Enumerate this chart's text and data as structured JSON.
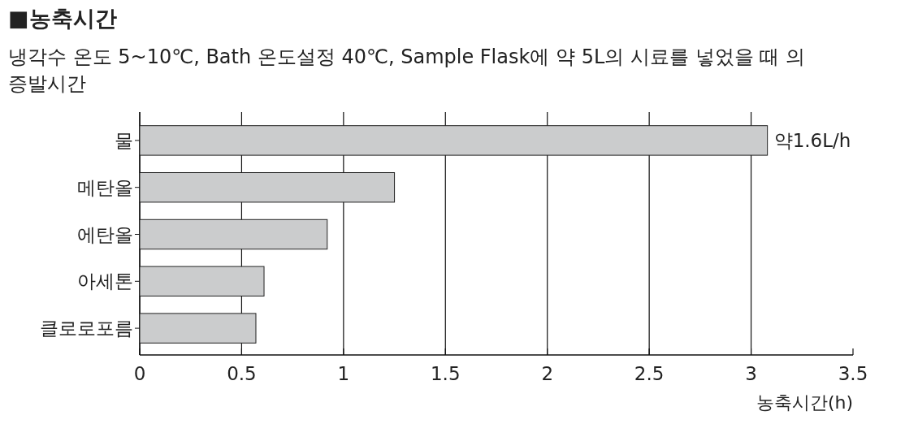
{
  "chart_data": {
    "type": "bar",
    "orientation": "horizontal",
    "title": "■농축시간",
    "subtitle": "냉각수 온도 5~10℃, Bath 온도설정 40℃, Sample Flask에 약 5L의 시료를 넣었을 때 의 증발시간",
    "xlabel": "농축시간(h)",
    "categories": [
      "물",
      "메탄올",
      "에탄올",
      "아세톤",
      "클로로포름"
    ],
    "values": [
      3.08,
      1.25,
      0.92,
      0.61,
      0.57
    ],
    "color": "#cbcccd",
    "xlim": [
      0,
      3.5
    ],
    "xticks": [
      0,
      0.5,
      1,
      1.5,
      2,
      2.5,
      3,
      3.5
    ],
    "grid": "x",
    "annotations": [
      {
        "text": "약1.6L/h",
        "x": 3.08,
        "y": "물"
      }
    ]
  }
}
